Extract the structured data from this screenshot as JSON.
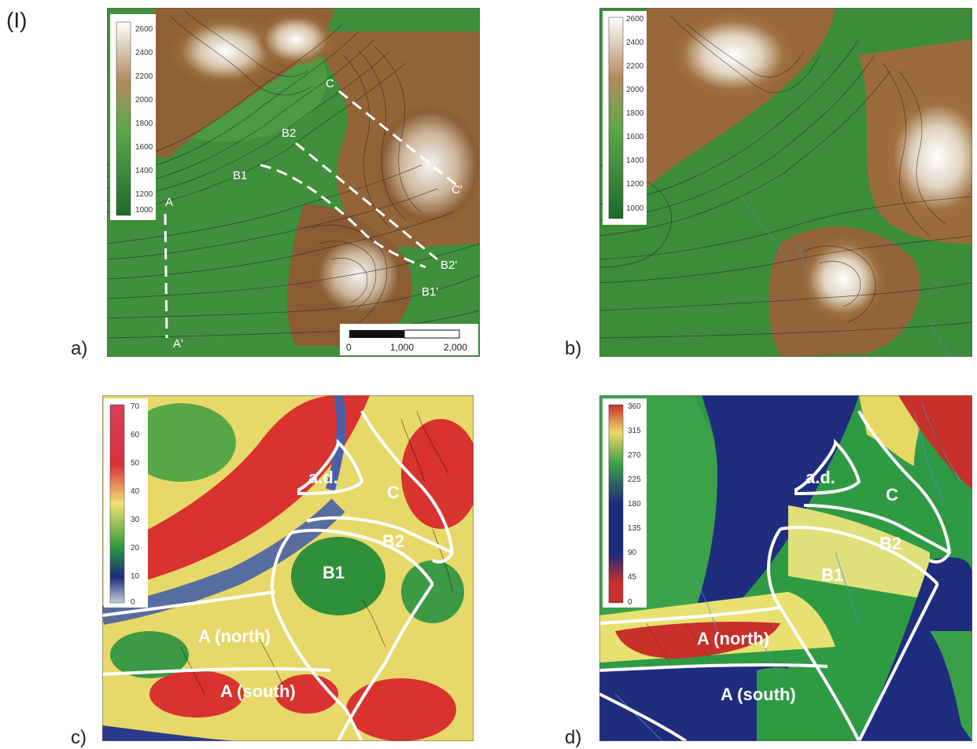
{
  "figure_label": "(I)",
  "panels": {
    "a": {
      "letter": "a)",
      "legend": [
        "2600",
        "2400",
        "2200",
        "2000",
        "1800",
        "1600",
        "1400",
        "1200",
        "1000"
      ],
      "profiles": [
        "A",
        "A'",
        "B1",
        "B1'",
        "B2",
        "B2'",
        "C",
        "C'"
      ],
      "scalebar": [
        "0",
        "1,000",
        "2,000"
      ]
    },
    "b": {
      "letter": "b)",
      "legend": [
        "2600",
        "2400",
        "2200",
        "2000",
        "1800",
        "1600",
        "1400",
        "1200",
        "1000"
      ]
    },
    "c": {
      "letter": "c)",
      "legend": [
        "70",
        "60",
        "50",
        "40",
        "30",
        "20",
        "10",
        "0"
      ],
      "zones": [
        "a.d.",
        "C",
        "B2",
        "B1",
        "A (north)",
        "A (south)"
      ]
    },
    "d": {
      "letter": "d)",
      "legend": [
        "360",
        "315",
        "270",
        "225",
        "180",
        "135",
        "90",
        "45",
        "0"
      ],
      "zones": [
        "a.d.",
        "C",
        "B2",
        "B1",
        "A (north)",
        "A (south)"
      ]
    }
  },
  "colors": {
    "elev_low": "#2e7d32",
    "elev_mid": "#8a5a2b",
    "elev_high": "#ffffff",
    "slope_high": "#d8253a",
    "aspect_blue": "#1c2a7a"
  }
}
